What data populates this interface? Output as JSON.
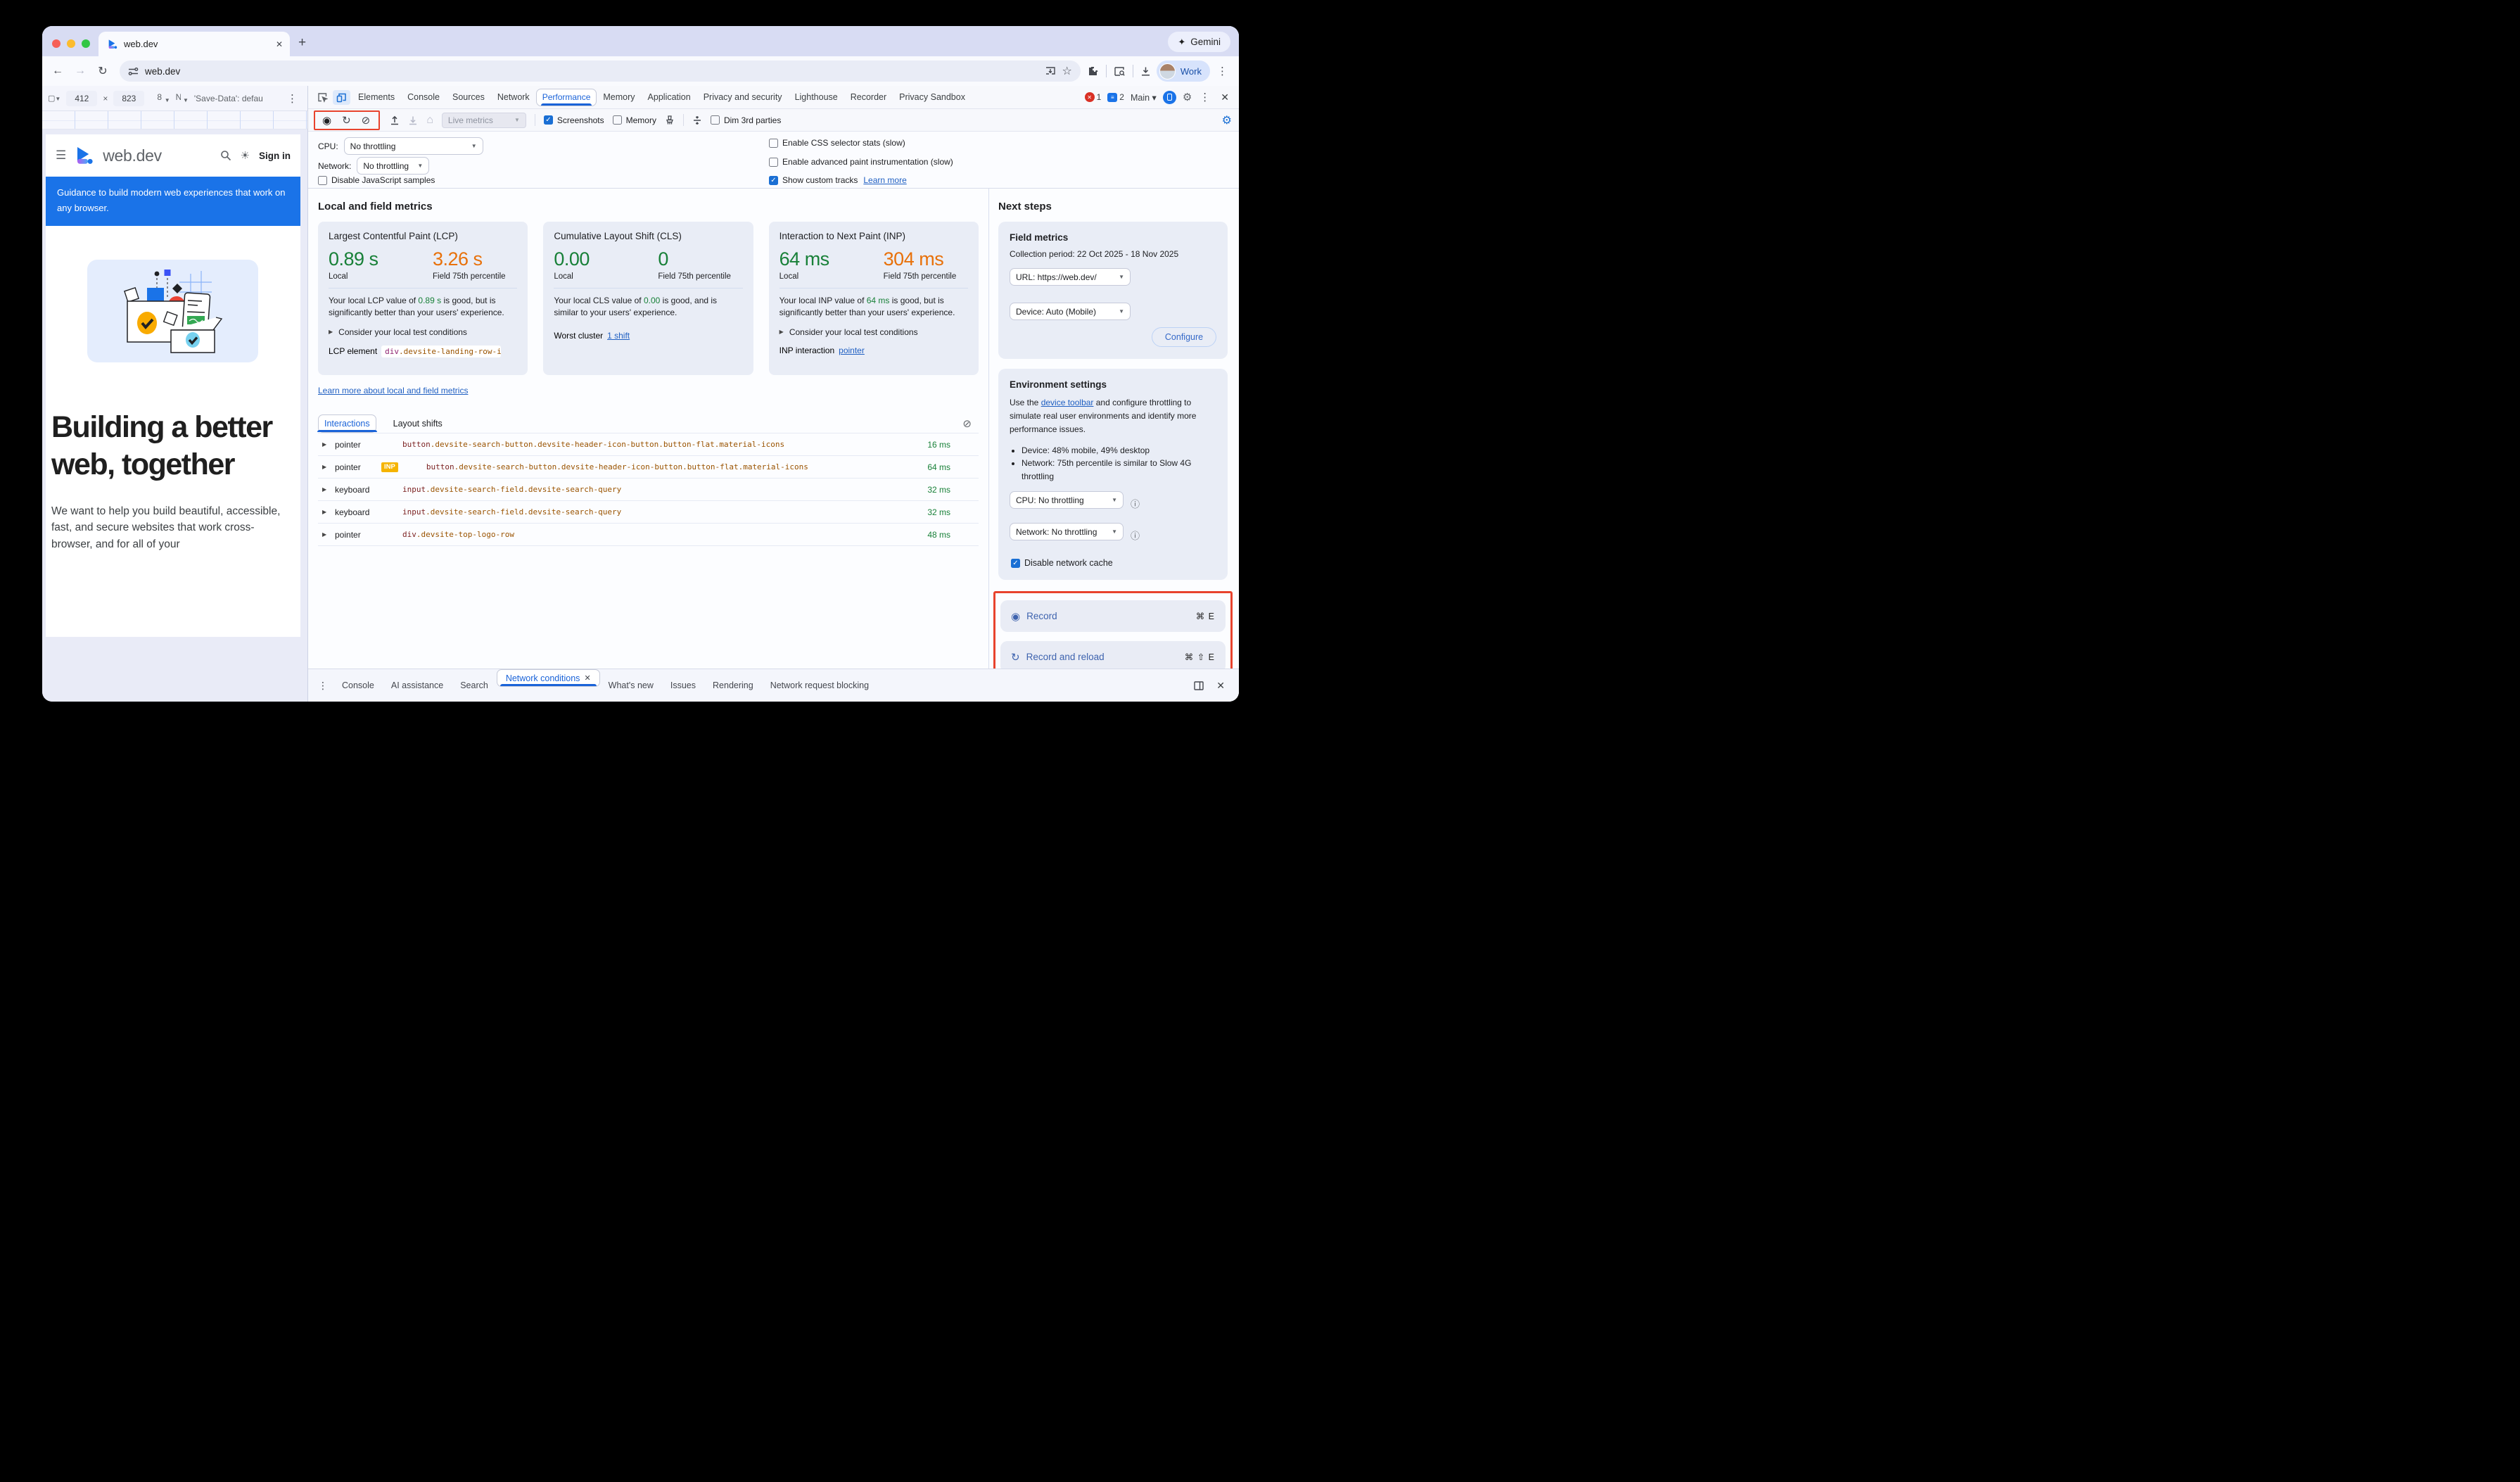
{
  "colors": {
    "accent": "#1a73e8",
    "good_green": "#188038",
    "warn_orange": "#e8710a",
    "highlight_red": "#e8432d",
    "inp_badge": "#f5b400"
  },
  "browser": {
    "tab_title": "web.dev",
    "new_tab": "+",
    "gemini_label": "Gemini",
    "url": "web.dev",
    "profile_label": "Work"
  },
  "device_toolbar": {
    "width": "412",
    "times": "×",
    "height": "823",
    "zoom_trunc": "8",
    "net_trunc": "N",
    "save_data": "'Save-Data': defau"
  },
  "site": {
    "brand": "web.dev",
    "sign_in": "Sign in",
    "banner": "Guidance to build modern web experiences that work on any browser.",
    "headline": "Building a better web, together",
    "paragraph": "We want to help you build beautiful, accessible, fast, and secure websites that work cross-browser, and for all of your"
  },
  "devtools": {
    "tabs": [
      "Elements",
      "Console",
      "Sources",
      "Network",
      "Performance",
      "Memory",
      "Application",
      "Privacy and security",
      "Lighthouse",
      "Recorder",
      "Privacy Sandbox"
    ],
    "selected_tab": "Performance",
    "error_count": "1",
    "issue_count": "2",
    "main_label": "Main ▾",
    "close": "✕",
    "toolbar": {
      "live_metrics": "Live metrics",
      "screenshots": "Screenshots",
      "memory": "Memory",
      "dim": "Dim 3rd parties"
    },
    "settings": {
      "cpu_label": "CPU:",
      "cpu_value": "No throttling",
      "network_label": "Network:",
      "network_value": "No throttling",
      "disable_js": "Disable JavaScript samples",
      "css_stats": "Enable CSS selector stats (slow)",
      "paint_instr": "Enable advanced paint instrumentation (slow)",
      "custom_tracks": "Show custom tracks",
      "learn_more": "Learn more"
    },
    "metrics_heading": "Local and field metrics",
    "cards": [
      {
        "title": "Largest Contentful Paint (LCP)",
        "local": "0.89 s",
        "field": "3.26 s",
        "local_label": "Local",
        "field_label": "Field 75th percentile",
        "desc_pre": "Your local LCP value of ",
        "desc_val": "0.89 s",
        "desc_post": " is good, but is significantly better than your users' experience.",
        "expand": "Consider your local test conditions",
        "extra_label": "LCP element",
        "chip_tag": "div",
        "chip_rest": ".devsite-landing-row-ite…"
      },
      {
        "title": "Cumulative Layout Shift (CLS)",
        "local": "0.00",
        "field": "0",
        "local_label": "Local",
        "field_label": "Field 75th percentile",
        "desc_pre": "Your local CLS value of ",
        "desc_val": "0.00",
        "desc_post": " is good, and is similar to your users' experience.",
        "extra_label": "Worst cluster",
        "extra_link": "1 shift"
      },
      {
        "title": "Interaction to Next Paint (INP)",
        "local": "64 ms",
        "field": "304 ms",
        "local_label": "Local",
        "field_label": "Field 75th percentile",
        "desc_pre": "Your local INP value of ",
        "desc_val": "64 ms",
        "desc_post": " is good, but is significantly better than your users' experience.",
        "expand": "Consider your local test conditions",
        "extra_label": "INP interaction",
        "extra_link": "pointer"
      }
    ],
    "learn_more_link": "Learn more about local and field metrics",
    "table": {
      "tabs": [
        "Interactions",
        "Layout shifts"
      ],
      "selected_tab": "Interactions",
      "rows": [
        {
          "type": "pointer",
          "badge": "",
          "tag": "button",
          "rest": ".devsite-search-button.devsite-header-icon-button.button-flat.material-icons",
          "duration": "16 ms"
        },
        {
          "type": "pointer",
          "badge": "INP",
          "tag": "button",
          "rest": ".devsite-search-button.devsite-header-icon-button.button-flat.material-icons",
          "duration": "64 ms"
        },
        {
          "type": "keyboard",
          "badge": "",
          "tag": "input",
          "rest": ".devsite-search-field.devsite-search-query",
          "duration": "32 ms"
        },
        {
          "type": "keyboard",
          "badge": "",
          "tag": "input",
          "rest": ".devsite-search-field.devsite-search-query",
          "duration": "32 ms"
        },
        {
          "type": "pointer",
          "badge": "",
          "tag": "div",
          "rest": ".devsite-top-logo-row",
          "duration": "48 ms"
        }
      ]
    },
    "next_steps": {
      "heading": "Next steps",
      "field_metrics": {
        "title": "Field metrics",
        "period": "Collection period: 22 Oct 2025 - 18 Nov 2025",
        "url_select": "URL: https://web.dev/",
        "device_select": "Device: Auto (Mobile)",
        "configure": "Configure"
      },
      "environment": {
        "title": "Environment settings",
        "para_pre": "Use the ",
        "para_link": "device toolbar",
        "para_post": " and configure throttling to simulate real user environments and identify more performance issues.",
        "bullets": [
          "Device: 48% mobile, 49% desktop",
          "Network: 75th percentile is similar to Slow 4G throttling"
        ],
        "cpu_select": "CPU: No throttling",
        "network_select": "Network: No throttling",
        "disable_cache": "Disable network cache"
      },
      "record": {
        "label": "Record",
        "shortcut": "⌘ E"
      },
      "record_reload": {
        "label": "Record and reload",
        "shortcut": "⌘ ⇧ E"
      }
    },
    "drawer": {
      "tabs": [
        "Console",
        "AI assistance",
        "Search",
        "Network conditions",
        "What's new",
        "Issues",
        "Rendering",
        "Network request blocking"
      ],
      "selected": "Network conditions"
    }
  }
}
